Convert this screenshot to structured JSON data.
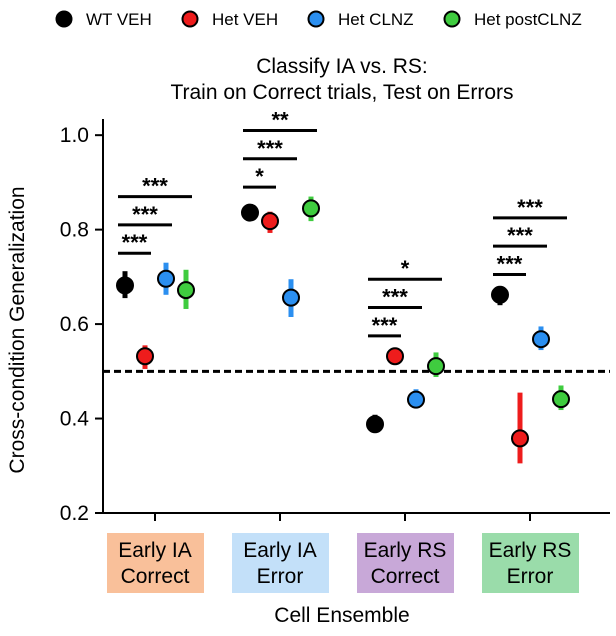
{
  "chart_data": {
    "type": "scatter",
    "title_lines": [
      "Classify IA vs. RS:",
      "Train on Correct trials, Test on Errors"
    ],
    "xlabel": "Cell Ensemble",
    "ylabel": "Cross-condition Generalization",
    "ylim": [
      0.2,
      1.03
    ],
    "yticks": [
      0.2,
      0.4,
      0.6,
      0.8,
      1.0
    ],
    "ytick_labels": [
      "0.2",
      "0.4",
      "0.6",
      "0.8",
      "1.0"
    ],
    "chance_level": 0.5,
    "legend_placement": "top",
    "categories": [
      {
        "lines": [
          "Early IA",
          "Correct"
        ],
        "color": "#f9c09a"
      },
      {
        "lines": [
          "Early IA",
          "Error"
        ],
        "color": "#c3e0f9"
      },
      {
        "lines": [
          "Early RS",
          "Correct"
        ],
        "color": "#c8a8d8"
      },
      {
        "lines": [
          "Early RS",
          "Error"
        ],
        "color": "#9adcaa"
      }
    ],
    "series": [
      {
        "name": "WT VEH",
        "color": "#000000",
        "edge": "#000000",
        "values": [
          0.682,
          0.836,
          0.388,
          0.662
        ],
        "err_low": [
          0.655,
          0.822,
          0.372,
          0.64
        ],
        "err_high": [
          0.712,
          0.85,
          0.408,
          0.68
        ]
      },
      {
        "name": "Het VEH",
        "color": "#ee1c1c",
        "edge": "#000000",
        "values": [
          0.532,
          0.818,
          0.532,
          0.358
        ],
        "err_low": [
          0.505,
          0.793,
          0.515,
          0.305
        ],
        "err_high": [
          0.555,
          0.838,
          0.547,
          0.455
        ]
      },
      {
        "name": "Het CLNZ",
        "color": "#2b8ff0",
        "edge": "#000000",
        "values": [
          0.696,
          0.656,
          0.44,
          0.568
        ],
        "err_low": [
          0.662,
          0.615,
          0.428,
          0.545
        ],
        "err_high": [
          0.73,
          0.695,
          0.462,
          0.595
        ]
      },
      {
        "name": "Het postCLNZ",
        "color": "#3fcc3f",
        "edge": "#000000",
        "values": [
          0.672,
          0.845,
          0.511,
          0.441
        ],
        "err_low": [
          0.632,
          0.818,
          0.488,
          0.418
        ],
        "err_high": [
          0.715,
          0.87,
          0.54,
          0.47
        ]
      }
    ],
    "significance": [
      {
        "category": 0,
        "from": 0,
        "to": 1,
        "y": 0.75,
        "label": "***"
      },
      {
        "category": 0,
        "from": 0,
        "to": 2,
        "y": 0.81,
        "label": "***"
      },
      {
        "category": 0,
        "from": 0,
        "to": 3,
        "y": 0.87,
        "label": "***"
      },
      {
        "category": 1,
        "from": 0,
        "to": 1,
        "y": 0.89,
        "label": "*"
      },
      {
        "category": 1,
        "from": 0,
        "to": 2,
        "y": 0.95,
        "label": "***"
      },
      {
        "category": 1,
        "from": 0,
        "to": 3,
        "y": 1.01,
        "label": "**"
      },
      {
        "category": 2,
        "from": 0,
        "to": 1,
        "y": 0.575,
        "label": "***"
      },
      {
        "category": 2,
        "from": 0,
        "to": 2,
        "y": 0.635,
        "label": "***"
      },
      {
        "category": 2,
        "from": 0,
        "to": 3,
        "y": 0.695,
        "label": "*"
      },
      {
        "category": 3,
        "from": 0,
        "to": 1,
        "y": 0.705,
        "label": "***"
      },
      {
        "category": 3,
        "from": 0,
        "to": 2,
        "y": 0.765,
        "label": "***"
      },
      {
        "category": 3,
        "from": 0,
        "to": 3,
        "y": 0.825,
        "label": "***"
      }
    ]
  }
}
